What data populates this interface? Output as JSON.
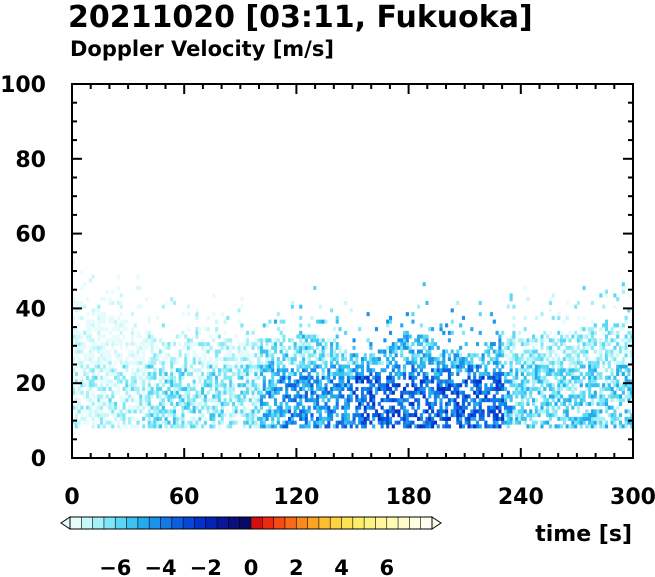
{
  "header": {
    "title": "20211020 [03:11, Fukuoka]",
    "subtitle": "Doppler Velocity [m/s]"
  },
  "chart_data": {
    "type": "heatmap",
    "title": "20211020 [03:11, Fukuoka]",
    "subtitle": "Doppler Velocity [m/s]",
    "xlabel": "time [s]",
    "ylabel": "",
    "xlim": [
      0,
      300
    ],
    "ylim": [
      0,
      100
    ],
    "x_ticks": [
      0,
      60,
      120,
      180,
      240,
      300
    ],
    "y_ticks": [
      0,
      20,
      40,
      60,
      80,
      100
    ],
    "x_tick_labels": [
      "0",
      "60",
      "120",
      "180",
      "240",
      "300"
    ],
    "y_tick_labels": [
      "0",
      "20",
      "40",
      "60",
      "80",
      "100"
    ],
    "grid": false,
    "data_y_range": [
      8,
      58
    ],
    "colorbar": {
      "min": -8,
      "max": 8,
      "step": 0.5,
      "tick_values": [
        -6,
        -4,
        -2,
        0,
        2,
        4,
        6
      ],
      "tick_labels": [
        "−6",
        "−4",
        "−2",
        "0",
        "2",
        "4",
        "6"
      ],
      "colors": [
        "#e6fcfc",
        "#c8f7f8",
        "#a6f0f7",
        "#7fe6f5",
        "#5ad7f4",
        "#3cc2f2",
        "#26aaef",
        "#1b92ec",
        "#1478e6",
        "#0d5fdf",
        "#0746d6",
        "#0232c9",
        "#0422b3",
        "#0a169a",
        "#0b0f7e",
        "#0a0a62",
        "#d21010",
        "#ee2a0e",
        "#f54a12",
        "#f96b16",
        "#fb8a1c",
        "#fca524",
        "#fdbf30",
        "#fdd33f",
        "#fde252",
        "#feed68",
        "#fef380",
        "#fff799",
        "#fffab2",
        "#fffcc9",
        "#fffddf",
        "#fffeef"
      ]
    },
    "velocity_summary": [
      {
        "time_range": [
          0,
          60
        ],
        "height_range": [
          8,
          40
        ],
        "typical_velocity": -7
      },
      {
        "time_range": [
          60,
          120
        ],
        "height_range": [
          8,
          35
        ],
        "typical_velocity": -6
      },
      {
        "time_range": [
          120,
          220
        ],
        "height_range": [
          8,
          30
        ],
        "typical_velocity": -4.5
      },
      {
        "time_range": [
          200,
          300
        ],
        "height_range": [
          8,
          30
        ],
        "typical_velocity": -5.5
      }
    ]
  }
}
